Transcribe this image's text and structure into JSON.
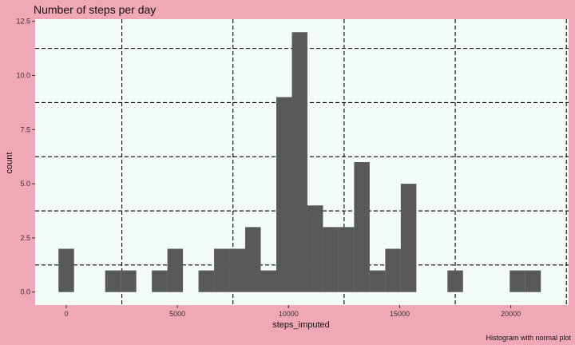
{
  "chart_data": {
    "type": "bar",
    "title": "Number of steps per day",
    "xlabel": "steps_imputed",
    "ylabel": "count",
    "caption": "Histogram with normal plot",
    "x_ticks": [
      0,
      5000,
      10000,
      15000,
      20000
    ],
    "x_tick_labels": [
      "0",
      "5000",
      "10000",
      "15000",
      "20000"
    ],
    "y_ticks": [
      0,
      2.5,
      5,
      7.5,
      10,
      12.5
    ],
    "y_tick_labels": [
      "0.0",
      "2.5",
      "5.0",
      "7.5",
      "10.0",
      "12.5"
    ],
    "xlim": [
      -1400,
      22600
    ],
    "ylim": [
      -0.6,
      12.6
    ],
    "binwidth": 700,
    "bins": [
      {
        "x": 0,
        "count": 2
      },
      {
        "x": 2100,
        "count": 1
      },
      {
        "x": 2800,
        "count": 1
      },
      {
        "x": 4200,
        "count": 1
      },
      {
        "x": 4900,
        "count": 2
      },
      {
        "x": 6300,
        "count": 1
      },
      {
        "x": 7000,
        "count": 2
      },
      {
        "x": 7700,
        "count": 2
      },
      {
        "x": 8400,
        "count": 3
      },
      {
        "x": 9100,
        "count": 1
      },
      {
        "x": 9800,
        "count": 9
      },
      {
        "x": 10500,
        "count": 12
      },
      {
        "x": 11200,
        "count": 4
      },
      {
        "x": 11900,
        "count": 3
      },
      {
        "x": 12600,
        "count": 3
      },
      {
        "x": 13300,
        "count": 6
      },
      {
        "x": 14000,
        "count": 1
      },
      {
        "x": 14700,
        "count": 2
      },
      {
        "x": 15400,
        "count": 5
      },
      {
        "x": 17500,
        "count": 1
      },
      {
        "x": 20300,
        "count": 1
      },
      {
        "x": 21000,
        "count": 1
      }
    ],
    "grid": true,
    "grid_style": "dashed",
    "legend": "none",
    "colors": {
      "figure_background": "#f0a8b8",
      "panel_background": "#f4fcf8",
      "bar_fill": "#595959",
      "grid": "#000000"
    }
  }
}
